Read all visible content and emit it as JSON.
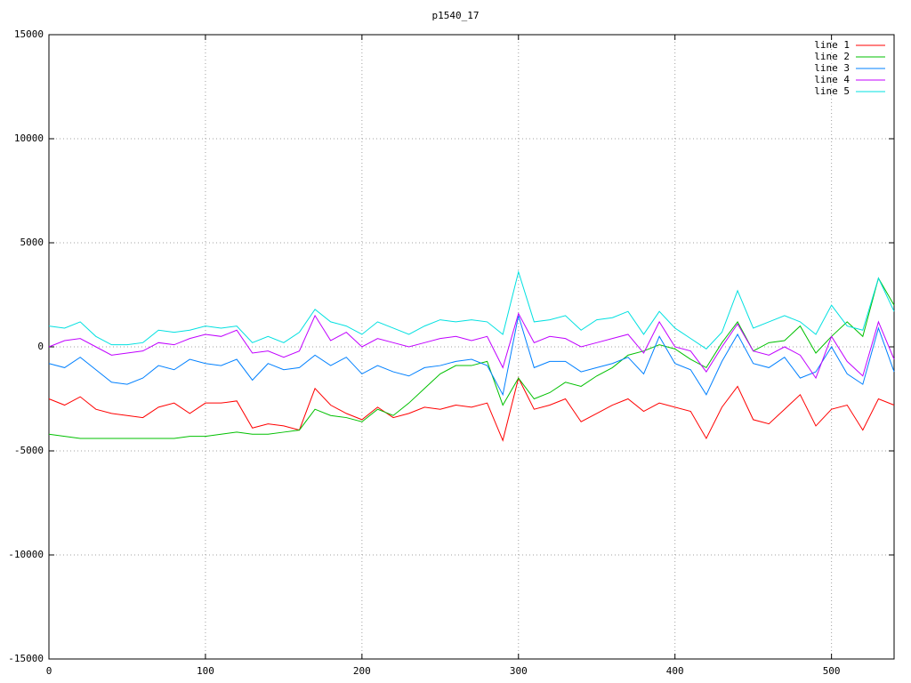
{
  "chart_data": {
    "type": "line",
    "title": "p1540_17",
    "x": [
      0,
      10,
      20,
      30,
      40,
      50,
      60,
      70,
      80,
      90,
      100,
      110,
      120,
      130,
      140,
      150,
      160,
      170,
      180,
      190,
      200,
      210,
      220,
      230,
      240,
      250,
      260,
      270,
      280,
      290,
      300,
      310,
      320,
      330,
      340,
      350,
      360,
      370,
      380,
      390,
      400,
      410,
      420,
      430,
      440,
      450,
      460,
      470,
      480,
      490,
      500,
      510,
      520,
      530,
      540
    ],
    "series": [
      {
        "name": "line 1",
        "color": "#ff0000",
        "values": [
          -2500,
          -2800,
          -2400,
          -3000,
          -3200,
          -3300,
          -3400,
          -2900,
          -2700,
          -3200,
          -2700,
          -2700,
          -2600,
          -3900,
          -3700,
          -3800,
          -4000,
          -2000,
          -2800,
          -3200,
          -3500,
          -2900,
          -3400,
          -3200,
          -2900,
          -3000,
          -2800,
          -2900,
          -2700,
          -4500,
          -1500,
          -3000,
          -2800,
          -2500,
          -3600,
          -3200,
          -2800,
          -2500,
          -3100,
          -2700,
          -2900,
          -3100,
          -4400,
          -2900,
          -1900,
          -3500,
          -3700,
          -3000,
          -2300,
          -3800,
          -3000,
          -2800,
          -4000,
          -2500,
          -2800
        ]
      },
      {
        "name": "line 2",
        "color": "#00c000",
        "values": [
          -4200,
          -4300,
          -4400,
          -4400,
          -4400,
          -4400,
          -4400,
          -4400,
          -4400,
          -4300,
          -4300,
          -4200,
          -4100,
          -4200,
          -4200,
          -4100,
          -4000,
          -3000,
          -3300,
          -3400,
          -3600,
          -3000,
          -3300,
          -2700,
          -2000,
          -1300,
          -900,
          -900,
          -700,
          -2800,
          -1500,
          -2500,
          -2200,
          -1700,
          -1900,
          -1400,
          -1000,
          -400,
          -200,
          100,
          -100,
          -600,
          -1000,
          200,
          1200,
          -200,
          200,
          300,
          1000,
          -300,
          500,
          1200,
          500,
          3300,
          2000
        ]
      },
      {
        "name": "line 3",
        "color": "#0080ff",
        "values": [
          -800,
          -1000,
          -500,
          -1100,
          -1700,
          -1800,
          -1500,
          -900,
          -1100,
          -600,
          -800,
          -900,
          -600,
          -1600,
          -800,
          -1100,
          -1000,
          -400,
          -900,
          -500,
          -1300,
          -900,
          -1200,
          -1400,
          -1000,
          -900,
          -700,
          -600,
          -900,
          -2300,
          1500,
          -1000,
          -700,
          -700,
          -1200,
          -1000,
          -800,
          -500,
          -1300,
          500,
          -800,
          -1100,
          -2300,
          -700,
          600,
          -800,
          -1000,
          -500,
          -1500,
          -1200,
          0,
          -1300,
          -1800,
          900,
          -1200
        ]
      },
      {
        "name": "line 4",
        "color": "#c000ff",
        "values": [
          0,
          300,
          400,
          0,
          -400,
          -300,
          -200,
          200,
          100,
          400,
          600,
          500,
          800,
          -300,
          -200,
          -500,
          -200,
          1500,
          300,
          700,
          0,
          400,
          200,
          0,
          200,
          400,
          500,
          300,
          500,
          -1000,
          1600,
          200,
          500,
          400,
          0,
          200,
          400,
          600,
          -300,
          1200,
          0,
          -200,
          -1200,
          0,
          1100,
          -200,
          -400,
          0,
          -400,
          -1500,
          500,
          -700,
          -1400,
          1200,
          -600
        ]
      },
      {
        "name": "line 5",
        "color": "#00e0e0",
        "values": [
          1000,
          900,
          1200,
          500,
          100,
          100,
          200,
          800,
          700,
          800,
          1000,
          900,
          1000,
          200,
          500,
          200,
          700,
          1800,
          1200,
          1000,
          600,
          1200,
          900,
          600,
          1000,
          1300,
          1200,
          1300,
          1200,
          600,
          3600,
          1200,
          1300,
          1500,
          800,
          1300,
          1400,
          1700,
          600,
          1700,
          900,
          400,
          -100,
          700,
          2700,
          900,
          1200,
          1500,
          1200,
          600,
          2000,
          1000,
          800,
          3300,
          1700
        ]
      }
    ],
    "xlim": [
      0,
      540
    ],
    "ylim": [
      -15000,
      15000
    ],
    "xticks": [
      0,
      100,
      200,
      300,
      400,
      500
    ],
    "yticks": [
      -15000,
      -10000,
      -5000,
      0,
      5000,
      10000,
      15000
    ],
    "grid": true,
    "legend": "top-right"
  }
}
